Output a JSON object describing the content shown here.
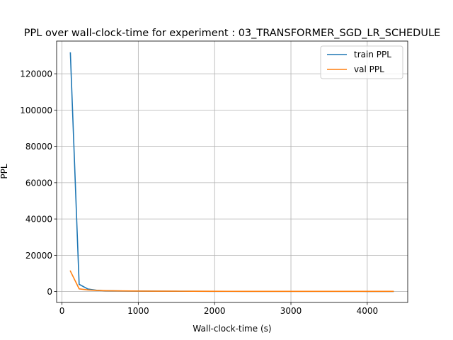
{
  "chart_data": {
    "type": "line",
    "title": "PPL over wall-clock-time for experiment : 03_TRANSFORMER_SGD_LR_SCHEDULE",
    "xlabel": "Wall-clock-time (s)",
    "ylabel": "PPL",
    "xlim": [
      -70,
      4530
    ],
    "ylim": [
      -6000,
      138000
    ],
    "xticks": [
      0,
      1000,
      2000,
      3000,
      4000
    ],
    "xtick_labels": [
      "0",
      "1000",
      "2000",
      "3000",
      "4000"
    ],
    "yticks": [
      0,
      20000,
      40000,
      60000,
      80000,
      100000,
      120000
    ],
    "ytick_labels": [
      "0",
      "20000",
      "40000",
      "60000",
      "80000",
      "100000",
      "120000"
    ],
    "grid": true,
    "legend_position": "upper-right",
    "series": [
      {
        "name": "train PPL",
        "color": "#1f77b4",
        "x": [
          110,
          225,
          340,
          455,
          570,
          800,
          1030,
          1260,
          1490,
          1720,
          1950,
          2180,
          2410,
          2640,
          2870,
          3100,
          3330,
          3560,
          3790,
          4020,
          4250,
          4340
        ],
        "y": [
          131500,
          4000,
          1400,
          700,
          450,
          300,
          250,
          210,
          180,
          160,
          140,
          130,
          120,
          115,
          110,
          105,
          100,
          98,
          95,
          93,
          90,
          90
        ]
      },
      {
        "name": "val PPL",
        "color": "#ff7f0e",
        "x": [
          110,
          225,
          340,
          455,
          570,
          800,
          1030,
          1260,
          1490,
          1720,
          1950,
          2180,
          2410,
          2640,
          2870,
          3100,
          3330,
          3560,
          3790,
          4020,
          4250,
          4340
        ],
        "y": [
          11300,
          1500,
          900,
          600,
          450,
          350,
          280,
          230,
          200,
          180,
          160,
          150,
          140,
          135,
          130,
          125,
          120,
          118,
          115,
          112,
          110,
          110
        ]
      }
    ]
  }
}
